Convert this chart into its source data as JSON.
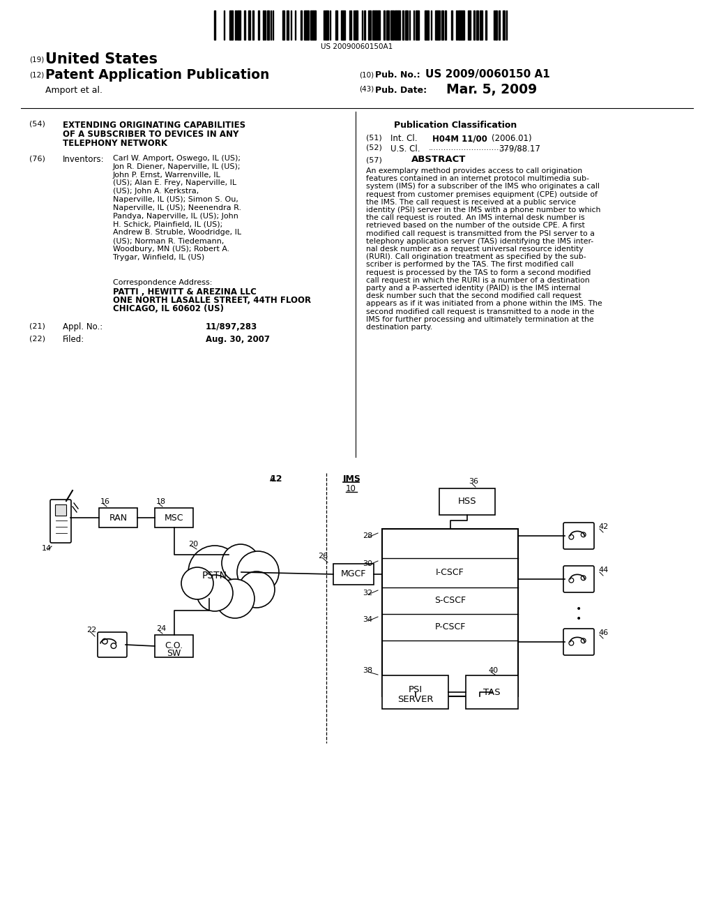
{
  "bg_color": "#ffffff",
  "barcode_number": "US 20090060150A1",
  "patent_number": "US 2009/0060150 A1",
  "pub_date": "Mar. 5, 2009",
  "country": "United States",
  "pub_type": "Patent Application Publication",
  "authors": "Amport et al.",
  "pub_no_label": "Pub. No.:",
  "pub_date_label": "Pub. Date:",
  "title_line1": "EXTENDING ORIGINATING CAPABILITIES",
  "title_line2": "OF A SUBSCRIBER TO DEVICES IN ANY",
  "title_line3": "TELEPHONY NETWORK",
  "inventors_label": "Inventors:",
  "inv_lines": [
    "Carl W. Amport, Oswego, IL (US);",
    "Jon R. Diener, Naperville, IL (US);",
    "John P. Ernst, Warrenville, IL",
    "(US); Alan E. Frey, Naperville, IL",
    "(US); John A. Kerkstra,",
    "Naperville, IL (US); Simon S. Ou,",
    "Naperville, IL (US); Neenendra R.",
    "Pandya, Naperville, IL (US); John",
    "H. Schick, Plainfield, IL (US);",
    "Andrew B. Struble, Woodridge, IL",
    "(US); Norman R. Tiedemann,",
    "Woodbury, MN (US); Robert A.",
    "Trygar, Winfield, IL (US)"
  ],
  "corr_label": "Correspondence Address:",
  "corr_line1": "PATTI , HEWITT & AREZINA LLC",
  "corr_line2": "ONE NORTH LASALLE STREET, 44TH FLOOR",
  "corr_line3": "CHICAGO, IL 60602 (US)",
  "appl_label": "Appl. No.:",
  "appl_no": "11/897,283",
  "filed_label": "Filed:",
  "filed_date": "Aug. 30, 2007",
  "pub_class": "Publication Classification",
  "intl_cl_label": "Int. Cl.",
  "intl_cl_val": "H04M 11/00",
  "intl_cl_year": "(2006.01)",
  "us_cl_label": "U.S. Cl.",
  "us_cl_val": "379/88.17",
  "abstract_title": "ABSTRACT",
  "abs_lines": [
    "An exemplary method provides access to call origination",
    "features contained in an internet protocol multimedia sub-",
    "system (IMS) for a subscriber of the IMS who originates a call",
    "request from customer premises equipment (CPE) outside of",
    "the IMS. The call request is received at a public service",
    "identity (PSI) server in the IMS with a phone number to which",
    "the call request is routed. An IMS internal desk number is",
    "retrieved based on the number of the outside CPE. A first",
    "modified call request is transmitted from the PSI server to a",
    "telephony application server (TAS) identifying the IMS inter-",
    "nal desk number as a request universal resource identity",
    "(RURI). Call origination treatment as specified by the sub-",
    "scriber is performed by the TAS. The first modified call",
    "request is processed by the TAS to form a second modified",
    "call request in which the RURI is a number of a destination",
    "party and a P-asserted identity (PAID) is the IMS internal",
    "desk number such that the second modified call request",
    "appears as if it was initiated from a phone within the IMS. The",
    "second modified call request is transmitted to a node in the",
    "IMS for further processing and ultimately termination at the",
    "destination party."
  ]
}
